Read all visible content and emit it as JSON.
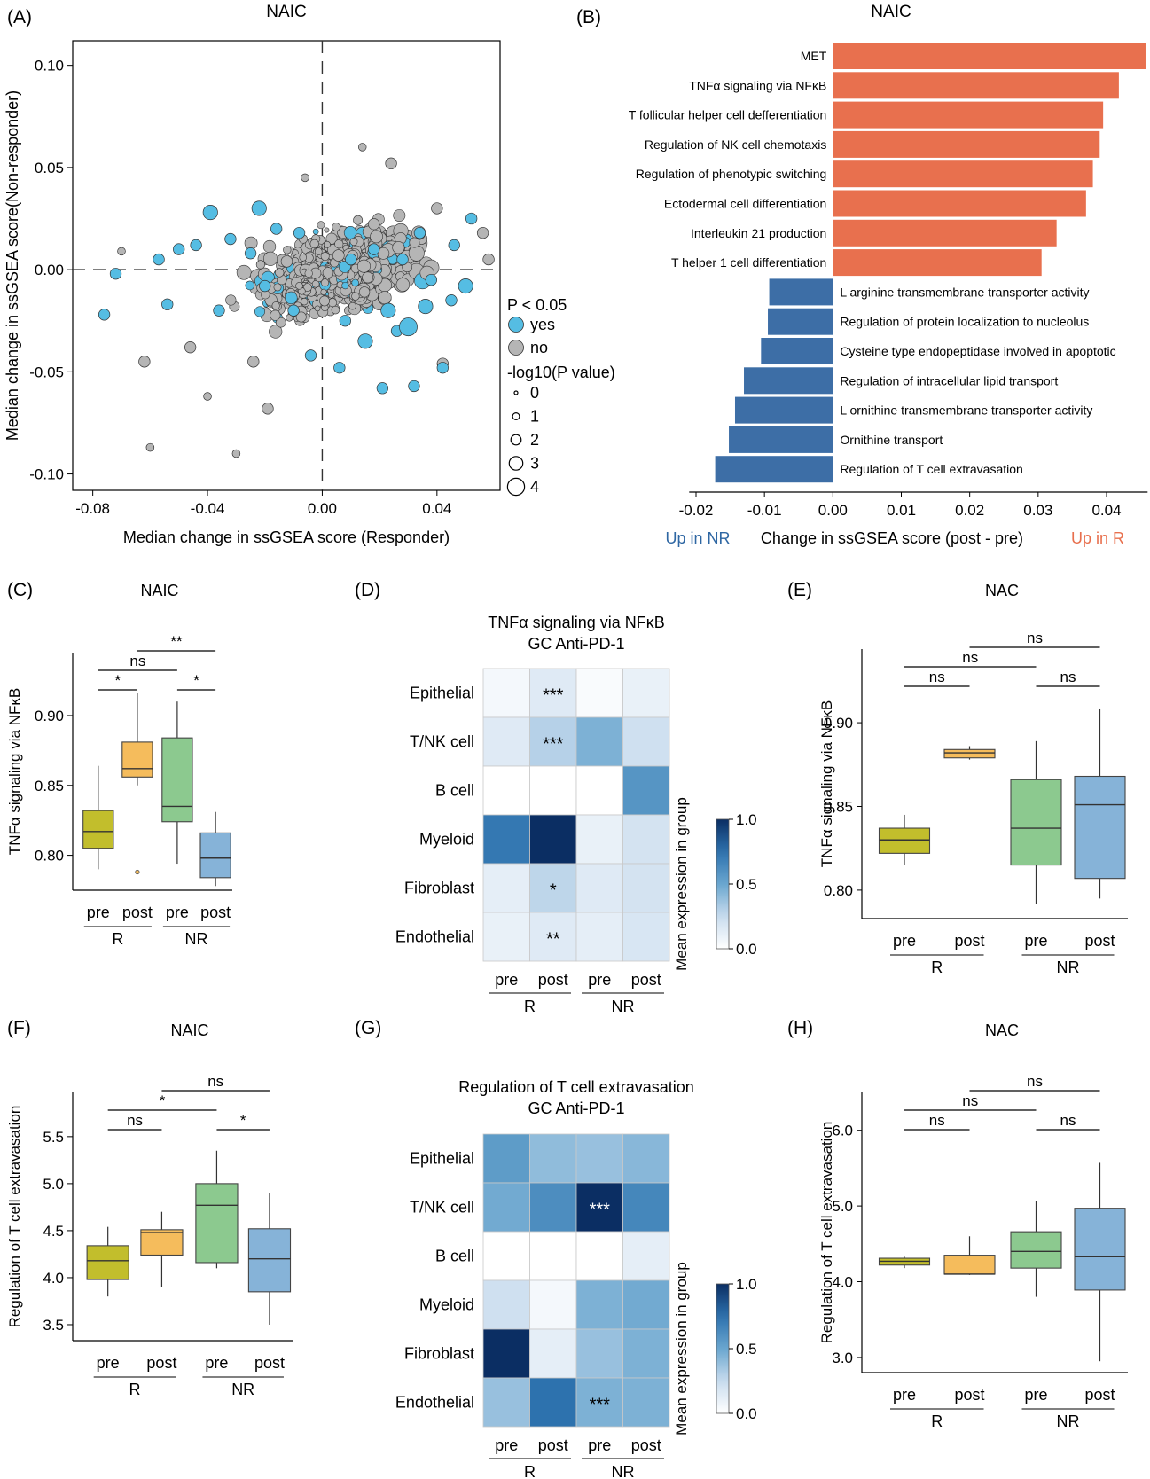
{
  "chart_data": [
    {
      "panel": "(A)",
      "type": "scatter",
      "title": "NAIC",
      "xlabel": "Median change in ssGSEA score (Responder)",
      "ylabel": "Median change in ssGSEA score(Non-responder)",
      "xlim": [
        -0.087,
        0.062
      ],
      "ylim": [
        -0.108,
        0.112
      ],
      "xticks": [
        -0.08,
        -0.04,
        0.0,
        0.04
      ],
      "xtick_labels": [
        "-0.08",
        "-0.04",
        "0.00",
        "0.04"
      ],
      "yticks": [
        0.1,
        0.05,
        0.0,
        -0.05,
        -0.1
      ],
      "ytick_labels": [
        "0.10",
        "0.05",
        "0.00",
        "-0.05",
        "-0.10"
      ],
      "legend": {
        "color_title": "P < 0.05",
        "color_items": [
          {
            "label": "yes",
            "color": "#55bde3"
          },
          {
            "label": "no",
            "color": "#b5b5b5"
          }
        ],
        "size_title": "-log10(P value)",
        "size_items": [
          "0",
          "1",
          "2",
          "3",
          "4"
        ],
        "placement": "right"
      },
      "points_described": "dense cloud of ~2000 pathways; selected points below",
      "points": [
        {
          "x": -0.076,
          "y": -0.022,
          "logp": 2,
          "sig": "yes"
        },
        {
          "x": -0.072,
          "y": -0.002,
          "logp": 2,
          "sig": "yes"
        },
        {
          "x": -0.07,
          "y": 0.009,
          "logp": 1,
          "sig": "no"
        },
        {
          "x": -0.062,
          "y": -0.045,
          "logp": 2,
          "sig": "no"
        },
        {
          "x": -0.06,
          "y": -0.087,
          "logp": 1,
          "sig": "no"
        },
        {
          "x": -0.057,
          "y": 0.005,
          "logp": 2,
          "sig": "yes"
        },
        {
          "x": -0.054,
          "y": -0.017,
          "logp": 2,
          "sig": "yes"
        },
        {
          "x": -0.05,
          "y": 0.01,
          "logp": 2,
          "sig": "yes"
        },
        {
          "x": -0.046,
          "y": -0.038,
          "logp": 2,
          "sig": "no"
        },
        {
          "x": -0.044,
          "y": 0.012,
          "logp": 2,
          "sig": "yes"
        },
        {
          "x": -0.04,
          "y": -0.062,
          "logp": 1,
          "sig": "no"
        },
        {
          "x": -0.039,
          "y": 0.028,
          "logp": 3,
          "sig": "yes"
        },
        {
          "x": -0.036,
          "y": -0.02,
          "logp": 2,
          "sig": "yes"
        },
        {
          "x": -0.032,
          "y": 0.015,
          "logp": 2,
          "sig": "yes"
        },
        {
          "x": -0.03,
          "y": -0.09,
          "logp": 1,
          "sig": "no"
        },
        {
          "x": -0.025,
          "y": 0.008,
          "logp": 2,
          "sig": "yes"
        },
        {
          "x": -0.024,
          "y": -0.045,
          "logp": 2,
          "sig": "no"
        },
        {
          "x": -0.022,
          "y": 0.03,
          "logp": 3,
          "sig": "yes"
        },
        {
          "x": -0.02,
          "y": -0.008,
          "logp": 2,
          "sig": "yes"
        },
        {
          "x": -0.019,
          "y": -0.068,
          "logp": 2,
          "sig": "no"
        },
        {
          "x": -0.016,
          "y": 0.02,
          "logp": 2,
          "sig": "yes"
        },
        {
          "x": -0.01,
          "y": -0.02,
          "logp": 2,
          "sig": "yes"
        },
        {
          "x": -0.008,
          "y": 0.018,
          "logp": 2,
          "sig": "yes"
        },
        {
          "x": -0.006,
          "y": 0.045,
          "logp": 1,
          "sig": "no"
        },
        {
          "x": -0.004,
          "y": -0.042,
          "logp": 2,
          "sig": "yes"
        },
        {
          "x": 0.006,
          "y": -0.048,
          "logp": 2,
          "sig": "yes"
        },
        {
          "x": 0.008,
          "y": -0.025,
          "logp": 2,
          "sig": "yes"
        },
        {
          "x": 0.01,
          "y": 0.005,
          "logp": 2,
          "sig": "yes"
        },
        {
          "x": 0.014,
          "y": 0.06,
          "logp": 1,
          "sig": "no"
        },
        {
          "x": 0.015,
          "y": -0.035,
          "logp": 3,
          "sig": "yes"
        },
        {
          "x": 0.018,
          "y": 0.01,
          "logp": 2,
          "sig": "yes"
        },
        {
          "x": 0.021,
          "y": -0.058,
          "logp": 2,
          "sig": "yes"
        },
        {
          "x": 0.023,
          "y": -0.02,
          "logp": 3,
          "sig": "yes"
        },
        {
          "x": 0.024,
          "y": 0.052,
          "logp": 2,
          "sig": "no"
        },
        {
          "x": 0.026,
          "y": -0.03,
          "logp": 2,
          "sig": "yes"
        },
        {
          "x": 0.028,
          "y": 0.005,
          "logp": 2,
          "sig": "yes"
        },
        {
          "x": 0.03,
          "y": -0.028,
          "logp": 4,
          "sig": "yes"
        },
        {
          "x": 0.032,
          "y": -0.057,
          "logp": 2,
          "sig": "yes"
        },
        {
          "x": 0.034,
          "y": 0.018,
          "logp": 2,
          "sig": "yes"
        },
        {
          "x": 0.036,
          "y": -0.018,
          "logp": 3,
          "sig": "yes"
        },
        {
          "x": 0.038,
          "y": -0.005,
          "logp": 2,
          "sig": "yes"
        },
        {
          "x": 0.04,
          "y": 0.03,
          "logp": 2,
          "sig": "no"
        },
        {
          "x": 0.042,
          "y": -0.046,
          "logp": 2,
          "sig": "no"
        },
        {
          "x": 0.042,
          "y": -0.048,
          "logp": 2,
          "sig": "yes"
        },
        {
          "x": 0.045,
          "y": -0.015,
          "logp": 2,
          "sig": "yes"
        },
        {
          "x": 0.046,
          "y": 0.012,
          "logp": 2,
          "sig": "yes"
        },
        {
          "x": 0.05,
          "y": -0.008,
          "logp": 3,
          "sig": "yes"
        },
        {
          "x": 0.052,
          "y": 0.025,
          "logp": 2,
          "sig": "yes"
        },
        {
          "x": 0.056,
          "y": 0.018,
          "logp": 2,
          "sig": "no"
        },
        {
          "x": 0.058,
          "y": 0.005,
          "logp": 2,
          "sig": "no"
        }
      ]
    },
    {
      "panel": "(B)",
      "type": "bar",
      "orientation": "horizontal",
      "title": "NAIC",
      "xlabel": "Change in ssGSEA score (post - pre)",
      "left_note": "Up in NR",
      "right_note": "Up in R",
      "xlim": [
        -0.021,
        0.046
      ],
      "xticks": [
        -0.02,
        -0.01,
        0.0,
        0.01,
        0.02,
        0.03,
        0.04
      ],
      "xtick_labels": [
        "-0.02",
        "-0.01",
        "0.00",
        "0.01",
        "0.02",
        "0.03",
        "0.04"
      ],
      "colors": {
        "positive": "#e8704e",
        "negative": "#3d6ea6"
      },
      "categories": [
        "MET",
        "TNFα signaling via NFκB",
        "T follicular helper cell defferentiation",
        "Regulation of NK cell chemotaxis",
        "Regulation of phenotypic switching",
        "Ectodermal cell differentiation",
        "Interleukin 21 production",
        "T helper 1 cell differentiation",
        "L arginine transmembrane transporter activity",
        "Regulation of protein localization to nucleolus",
        "Cysteine type endopeptidase involved in apoptotic",
        "Regulation of intracellular lipid transport",
        "L ornithine transmembrane transporter activity",
        "Ornithine transport",
        "Regulation of T cell extravasation"
      ],
      "values": [
        0.0457,
        0.0418,
        0.0395,
        0.039,
        0.038,
        0.037,
        0.0327,
        0.0305,
        -0.0093,
        -0.0095,
        -0.0105,
        -0.013,
        -0.0143,
        -0.0152,
        -0.0172
      ]
    },
    {
      "panel": "(C)",
      "type": "box",
      "title": "NAIC",
      "ylabel": "TNFα signaling via NFκB",
      "ylim": [
        0.775,
        0.945
      ],
      "yticks": [
        0.8,
        0.85,
        0.9
      ],
      "ytick_labels": [
        "0.80",
        "0.85",
        "0.90"
      ],
      "categories": [
        "pre",
        "post",
        "pre",
        "post"
      ],
      "groups": [
        "R",
        "NR"
      ],
      "colors": [
        "#c2be2c",
        "#f5bc5c",
        "#8cc98f",
        "#86b3d8"
      ],
      "boxes": [
        {
          "min": 0.79,
          "q1": 0.805,
          "median": 0.817,
          "q3": 0.832,
          "max": 0.864,
          "outliers": []
        },
        {
          "min": 0.85,
          "q1": 0.856,
          "median": 0.862,
          "q3": 0.881,
          "max": 0.916,
          "outliers": [
            0.788
          ]
        },
        {
          "min": 0.794,
          "q1": 0.824,
          "median": 0.835,
          "q3": 0.884,
          "max": 0.91,
          "outliers": []
        },
        {
          "min": 0.778,
          "q1": 0.784,
          "median": 0.798,
          "q3": 0.816,
          "max": 0.831,
          "outliers": []
        }
      ],
      "significance": [
        {
          "from": 0,
          "to": 1,
          "label": "*"
        },
        {
          "from": 2,
          "to": 3,
          "label": "*"
        },
        {
          "from": 0,
          "to": 2,
          "label": "ns"
        },
        {
          "from": 1,
          "to": 3,
          "label": "**"
        }
      ]
    },
    {
      "panel": "(D)",
      "type": "heatmap",
      "title": "TNFα signaling via NFκB",
      "subtitle": "GC Anti-PD-1",
      "rows": [
        "Epithelial",
        "T/NK cell",
        "B cell",
        "Myeloid",
        "Fibroblast",
        "Endothelial"
      ],
      "columns": [
        "pre",
        "post",
        "pre",
        "post"
      ],
      "groups": [
        "R",
        "NR"
      ],
      "values": [
        [
          0.05,
          0.15,
          0.03,
          0.1
        ],
        [
          0.15,
          0.3,
          0.45,
          0.22
        ],
        [
          0.0,
          0.0,
          0.0,
          0.58
        ],
        [
          0.72,
          1.0,
          0.1,
          0.2
        ],
        [
          0.12,
          0.28,
          0.15,
          0.2
        ],
        [
          0.1,
          0.15,
          0.12,
          0.18
        ]
      ],
      "annotations": [
        [
          "",
          "***",
          "",
          ""
        ],
        [
          "",
          "***",
          "",
          ""
        ],
        [
          "",
          "",
          "",
          ""
        ],
        [
          "",
          "",
          "",
          ""
        ],
        [
          "",
          "*",
          "",
          ""
        ],
        [
          "",
          "**",
          "",
          ""
        ]
      ],
      "colorbar": {
        "label": "Mean expression in group",
        "ticks": [
          "1.0",
          "0.5",
          "0.0"
        ],
        "range": [
          0,
          1
        ]
      }
    },
    {
      "panel": "(E)",
      "type": "box",
      "title": "NAC",
      "ylabel": "TNFα signaling via NFκB",
      "ylim": [
        0.783,
        0.944
      ],
      "yticks": [
        0.8,
        0.85,
        0.9
      ],
      "ytick_labels": [
        "0.80",
        "0.85",
        "0.90"
      ],
      "categories": [
        "pre",
        "post",
        "pre",
        "post"
      ],
      "groups": [
        "R",
        "NR"
      ],
      "colors": [
        "#c2be2c",
        "#f5bc5c",
        "#8cc98f",
        "#86b3d8"
      ],
      "boxes": [
        {
          "min": 0.815,
          "q1": 0.822,
          "median": 0.83,
          "q3": 0.837,
          "max": 0.845,
          "outliers": []
        },
        {
          "min": 0.878,
          "q1": 0.879,
          "median": 0.882,
          "q3": 0.884,
          "max": 0.886,
          "outliers": []
        },
        {
          "min": 0.792,
          "q1": 0.815,
          "median": 0.837,
          "q3": 0.866,
          "max": 0.889,
          "outliers": []
        },
        {
          "min": 0.795,
          "q1": 0.807,
          "median": 0.851,
          "q3": 0.868,
          "max": 0.908,
          "outliers": []
        }
      ],
      "significance": [
        {
          "from": 0,
          "to": 1,
          "label": "ns"
        },
        {
          "from": 2,
          "to": 3,
          "label": "ns"
        },
        {
          "from": 0,
          "to": 2,
          "label": "ns"
        },
        {
          "from": 1,
          "to": 3,
          "label": "ns"
        }
      ]
    },
    {
      "panel": "(F)",
      "type": "box",
      "title": "NAIC",
      "ylabel": "Regulation of T cell extravasation",
      "ylim": [
        3.33,
        5.97
      ],
      "yticks": [
        3.5,
        4.0,
        4.5,
        5.0,
        5.5
      ],
      "ytick_labels": [
        "3.5",
        "4.0",
        "4.5",
        "5.0",
        "5.5"
      ],
      "categories": [
        "pre",
        "post",
        "pre",
        "post"
      ],
      "groups": [
        "R",
        "NR"
      ],
      "colors": [
        "#c2be2c",
        "#f5bc5c",
        "#8cc98f",
        "#86b3d8"
      ],
      "boxes": [
        {
          "min": 3.8,
          "q1": 3.98,
          "median": 4.18,
          "q3": 4.34,
          "max": 4.54,
          "outliers": []
        },
        {
          "min": 3.9,
          "q1": 4.24,
          "median": 4.48,
          "q3": 4.51,
          "max": 4.7,
          "outliers": []
        },
        {
          "min": 4.1,
          "q1": 4.16,
          "median": 4.77,
          "q3": 5.0,
          "max": 5.35,
          "outliers": []
        },
        {
          "min": 3.5,
          "q1": 3.85,
          "median": 4.2,
          "q3": 4.52,
          "max": 4.9,
          "outliers": []
        }
      ],
      "significance": [
        {
          "from": 0,
          "to": 1,
          "label": "ns"
        },
        {
          "from": 2,
          "to": 3,
          "label": "*"
        },
        {
          "from": 0,
          "to": 2,
          "label": "*"
        },
        {
          "from": 1,
          "to": 3,
          "label": "ns"
        }
      ]
    },
    {
      "panel": "(G)",
      "type": "heatmap",
      "title": "Regulation of T cell extravasation",
      "subtitle": "GC Anti-PD-1",
      "rows": [
        "Epithelial",
        "T/NK cell",
        "B cell",
        "Myeloid",
        "Fibroblast",
        "Endothelial"
      ],
      "columns": [
        "pre",
        "post",
        "pre",
        "post"
      ],
      "groups": [
        "R",
        "NR"
      ],
      "values": [
        [
          0.55,
          0.4,
          0.38,
          0.42
        ],
        [
          0.48,
          0.62,
          1.0,
          0.65
        ],
        [
          0.0,
          0.0,
          0.0,
          0.12
        ],
        [
          0.22,
          0.05,
          0.45,
          0.48
        ],
        [
          1.0,
          0.12,
          0.38,
          0.45
        ],
        [
          0.38,
          0.75,
          0.45,
          0.45
        ]
      ],
      "annotations": [
        [
          "",
          "",
          "",
          ""
        ],
        [
          "",
          "",
          "***",
          ""
        ],
        [
          "",
          "",
          "",
          ""
        ],
        [
          "",
          "",
          "",
          ""
        ],
        [
          "",
          "",
          "",
          ""
        ],
        [
          "",
          "",
          "***",
          ""
        ]
      ],
      "colorbar": {
        "label": "Mean expression in group",
        "ticks": [
          "1.0",
          "0.5",
          "0.0"
        ],
        "range": [
          0,
          1
        ]
      }
    },
    {
      "panel": "(H)",
      "type": "box",
      "title": "NAC",
      "ylabel": "Regulation of T cell extravasation",
      "ylim": [
        2.8,
        6.5
      ],
      "yticks": [
        3.0,
        4.0,
        5.0,
        6.0
      ],
      "ytick_labels": [
        "3.0",
        "4.0",
        "5.0",
        "6.0"
      ],
      "categories": [
        "pre",
        "post",
        "pre",
        "post"
      ],
      "groups": [
        "R",
        "NR"
      ],
      "colors": [
        "#c2be2c",
        "#f5bc5c",
        "#8cc98f",
        "#86b3d8"
      ],
      "boxes": [
        {
          "min": 4.18,
          "q1": 4.22,
          "median": 4.27,
          "q3": 4.31,
          "max": 4.33,
          "outliers": []
        },
        {
          "min": 4.09,
          "q1": 4.1,
          "median": 4.1,
          "q3": 4.35,
          "max": 4.6,
          "outliers": []
        },
        {
          "min": 3.8,
          "q1": 4.18,
          "median": 4.4,
          "q3": 4.66,
          "max": 5.07,
          "outliers": []
        },
        {
          "min": 2.95,
          "q1": 3.89,
          "median": 4.33,
          "q3": 4.97,
          "max": 5.57,
          "outliers": []
        }
      ],
      "significance": [
        {
          "from": 0,
          "to": 1,
          "label": "ns"
        },
        {
          "from": 2,
          "to": 3,
          "label": "ns"
        },
        {
          "from": 0,
          "to": 2,
          "label": "ns"
        },
        {
          "from": 1,
          "to": 3,
          "label": "ns"
        }
      ]
    }
  ],
  "panel_labels": [
    "(A)",
    "(B)",
    "(C)",
    "(D)",
    "(E)",
    "(F)",
    "(G)",
    "(H)"
  ]
}
